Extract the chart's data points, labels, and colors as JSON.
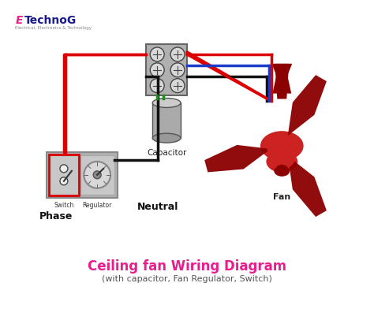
{
  "title": "Ceiling fan Wiring Diagram",
  "subtitle": "(with capacitor, Fan Regulator, Switch)",
  "title_color": "#e91e8c",
  "subtitle_color": "#555555",
  "bg_color": "#ffffff",
  "logo_color_E": "#e91e8c",
  "logo_color_rest": "#1a1a8c",
  "wire_red": "#dd0000",
  "wire_black": "#111111",
  "wire_blue": "#1a3cc8",
  "wire_green": "#228b22",
  "label_phase": "Phase",
  "label_switch": "Switch",
  "label_regulator": "Regulator",
  "label_neutral": "Neutral",
  "label_capacitor": "Capacitor",
  "label_fan": "Fan",
  "fan_color": "#8b0000",
  "fan_body_color": "#cc2222",
  "capacitor_color": "#aaaaaa",
  "switch_box_color": "#b0b0b0",
  "junction_box_color": "#b0b0b0"
}
